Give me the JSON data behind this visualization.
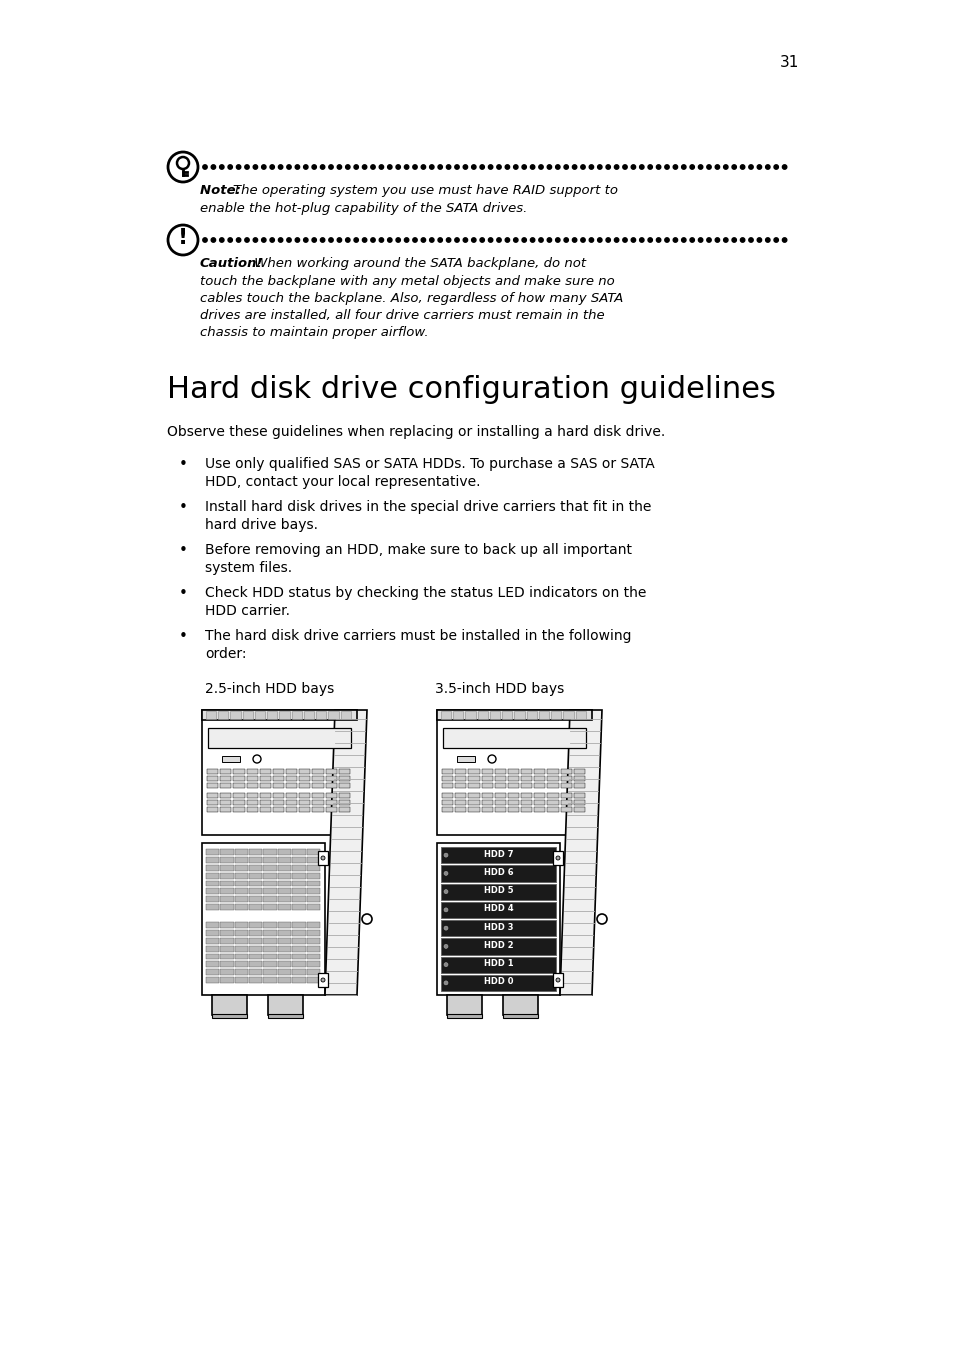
{
  "page_number": "31",
  "bg_color": "#ffffff",
  "text_color": "#000000",
  "note_bold": "Note: ",
  "note_regular": "The operating system you use must have RAID support to\nenable the hot-plug capability of the SATA drives.",
  "caution_bold": "Caution!",
  "caution_regular": " When working around the SATA backplane, do not\ntouch the backplane with any metal objects and make sure no\ncables touch the backplane. Also, regardless of how many SATA\ndrives are installed, all four drive carriers must remain in the\nchassis to maintain proper airflow.",
  "section_title": "Hard disk drive configuration guidelines",
  "intro_text": "Observe these guidelines when replacing or installing a hard disk drive.",
  "bullet_items": [
    [
      "Use only qualified SAS or SATA HDDs. To purchase a SAS or SATA",
      "HDD, contact your local representative."
    ],
    [
      "Install hard disk drives in the special drive carriers that fit in the",
      "hard drive bays."
    ],
    [
      "Before removing an HDD, make sure to back up all important",
      "system files."
    ],
    [
      "Check HDD status by checking the status LED indicators on the",
      "HDD carrier."
    ],
    [
      "The hard disk drive carriers must be installed in the following",
      "order:"
    ]
  ],
  "label_25": "2.5-inch HDD bays",
  "label_35": "3.5-inch HDD bays",
  "hdd_labels_35": [
    "HDD 7",
    "HDD 6",
    "HDD 5",
    "HDD 4",
    "HDD 3",
    "HDD 2",
    "HDD 1",
    "HDD 0"
  ]
}
